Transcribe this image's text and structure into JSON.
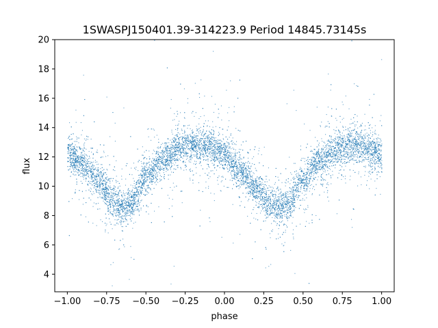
{
  "chart_data": {
    "type": "scatter",
    "title": "1SWASPJ150401.39-314223.9 Period 14845.73145s",
    "xlabel": "phase",
    "ylabel": "flux",
    "xlim": [
      -1.08,
      1.08
    ],
    "ylim": [
      2.8,
      20.0
    ],
    "x_ticks": [
      -1.0,
      -0.75,
      -0.5,
      -0.25,
      0.0,
      0.25,
      0.5,
      0.75,
      1.0
    ],
    "x_tick_labels": [
      "−1.00",
      "−0.75",
      "−0.50",
      "−0.25",
      "0.00",
      "0.25",
      "0.50",
      "0.75",
      "1.00"
    ],
    "y_ticks": [
      4,
      6,
      8,
      10,
      12,
      14,
      16,
      18,
      20
    ],
    "y_tick_labels": [
      "4",
      "6",
      "8",
      "10",
      "12",
      "14",
      "16",
      "18",
      "20"
    ],
    "grid": false,
    "point_color": "#1f77b4",
    "series": [
      {
        "phase": [
          -1.0,
          -0.9,
          -0.8,
          -0.7,
          -0.65,
          -0.6,
          -0.5,
          -0.4,
          -0.3,
          -0.2,
          -0.15,
          -0.1,
          0.0,
          0.1,
          0.2,
          0.3,
          0.35,
          0.4,
          0.5,
          0.6,
          0.7,
          0.8,
          0.85,
          0.9,
          1.0
        ],
        "flux": [
          12.2,
          11.6,
          10.3,
          8.9,
          8.6,
          8.9,
          10.6,
          11.8,
          12.6,
          12.8,
          12.85,
          12.7,
          12.1,
          11.0,
          9.8,
          8.8,
          8.6,
          8.8,
          10.4,
          11.6,
          12.4,
          12.85,
          12.85,
          12.7,
          12.2
        ]
      }
    ]
  }
}
